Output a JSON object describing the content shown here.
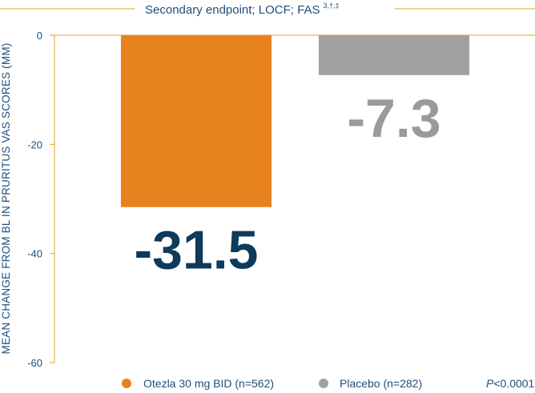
{
  "chart_data": {
    "type": "bar",
    "subtitle": "Secondary endpoint; LOCF; FAS",
    "subtitle_superscript": "3,†,‡",
    "ylabel": "MEAN CHANGE FROM BL IN PRURITUS VAS SCORES (MM)",
    "xlabel": "",
    "ylim": [
      -60,
      0
    ],
    "yticks": [
      0,
      -20,
      -40,
      -60
    ],
    "categories": [
      "Otezla 30 mg BID (n=562)",
      "Placebo (n=282)"
    ],
    "values": [
      -31.5,
      -7.3
    ],
    "data_labels": [
      "-31.5",
      "-7.3"
    ],
    "colors": [
      "#e8821e",
      "#a0a0a0"
    ],
    "label_colors": [
      "#0e3a5c",
      "#9a9a9a"
    ],
    "axis_color": "#e8a020",
    "text_color": "#1f4e79",
    "grid": false,
    "legend": {
      "placement": "bottom",
      "entries": [
        {
          "label": "Otezla 30 mg BID (n=562)",
          "color": "#e8821e"
        },
        {
          "label": "Placebo (n=282)",
          "color": "#a0a0a0"
        }
      ]
    },
    "annotation": {
      "p_italic": "P",
      "p_rest": "<0.0001"
    }
  }
}
